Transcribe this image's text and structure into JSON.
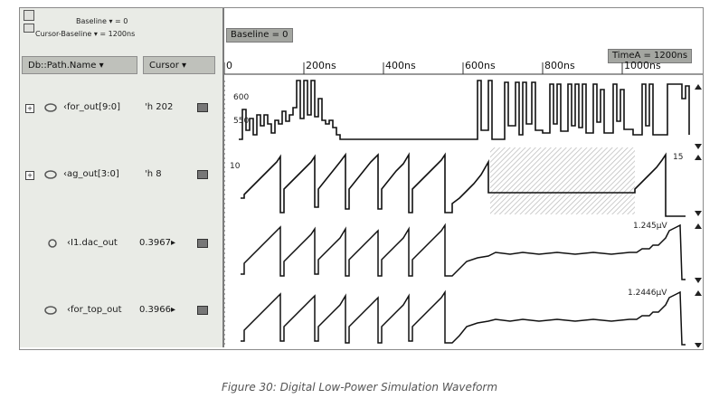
{
  "panel": {
    "baseline_label": "Baseline ▾ = 0",
    "cursor_baseline_label": "Cursor-Baseline ▾ = 1200ns",
    "col_path_name": "Db::Path.Name ▾",
    "col_cursor": "Cursor ▾"
  },
  "signals": [
    {
      "name": "‹for_out[9:0]",
      "value": "'h 202",
      "expand": "+"
    },
    {
      "name": "‹ag_out[3:0]",
      "value": "'h 8",
      "expand": "+"
    },
    {
      "name": "‹I1.dac_out",
      "value": "0.3967▸",
      "expand": ""
    },
    {
      "name": "‹for_top_out",
      "value": "0.3966▸",
      "expand": ""
    }
  ],
  "waves": {
    "baseline_tag": "Baseline = 0",
    "timea_tag": "TimeA = 1200ns",
    "ruler": [
      "0",
      "200ns",
      "400ns",
      "600ns",
      "800ns",
      "1000ns"
    ],
    "labels": {
      "w1_a": "600",
      "w1_b": "550",
      "w2_top": "10",
      "w2_right": "15",
      "w3_right": "1.245µV",
      "w4_right": "1.2446µV"
    }
  },
  "caption": "Figure 30: Digital Low-Power Simulation Waveform"
}
